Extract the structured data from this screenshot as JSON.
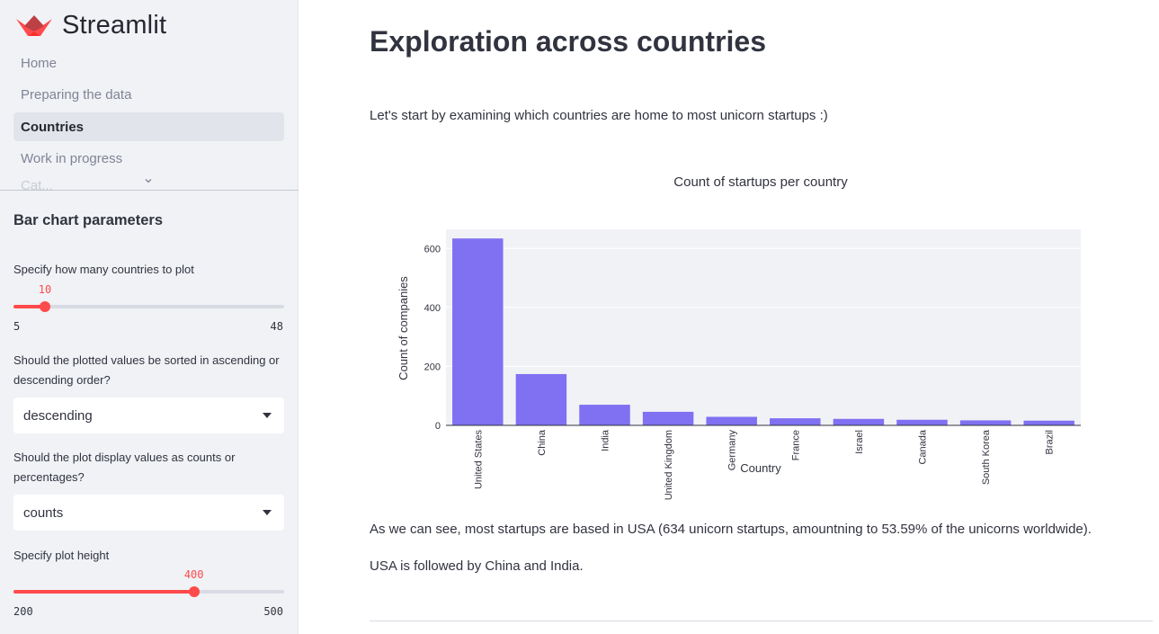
{
  "app": {
    "brand_name": "Streamlit",
    "brand_icon": "streamlit-crown-icon",
    "accent": "#ff4b4b"
  },
  "sidebar": {
    "nav": [
      {
        "label": "Home",
        "active": false
      },
      {
        "label": "Preparing the data",
        "active": false
      },
      {
        "label": "Countries",
        "active": true
      },
      {
        "label": "Work in progress",
        "active": false
      }
    ],
    "nav_partial": "Cat...",
    "params_title": "Bar chart parameters",
    "countries_slider": {
      "label": "Specify how many countries to plot",
      "value": 10,
      "min": 5,
      "max": 48
    },
    "sort_select": {
      "label": "Should the plotted values be sorted in ascending or descending order?",
      "value": "descending"
    },
    "display_select": {
      "label": "Should the plot display values as counts or percentages?",
      "value": "counts"
    },
    "height_slider": {
      "label": "Specify plot height",
      "value": 400,
      "min": 200,
      "max": 500
    }
  },
  "main": {
    "title": "Exploration across countries",
    "intro": "Let's start by examining which countries are home to most unicorn startups :)",
    "conclusion_1": "As we can see, most startups are based in USA (634 unicorn startups, amountning to 53.59% of the unicorns worldwide).",
    "conclusion_2": "USA is followed by China and India."
  },
  "chart_data": {
    "type": "bar",
    "title": "Count of startups per country",
    "xlabel": "Country",
    "ylabel": "Count of companies",
    "categories": [
      "United States",
      "China",
      "India",
      "United Kingdom",
      "Germany",
      "France",
      "Israel",
      "Canada",
      "South Korea",
      "Brazil"
    ],
    "values": [
      634,
      174,
      70,
      46,
      29,
      24,
      22,
      19,
      17,
      16
    ],
    "ylim": [
      0,
      665
    ],
    "yticks": [
      0,
      200,
      400,
      600
    ],
    "bar_color": "#8070f2",
    "plot_bg": "#f0f2f6",
    "grid": true
  }
}
